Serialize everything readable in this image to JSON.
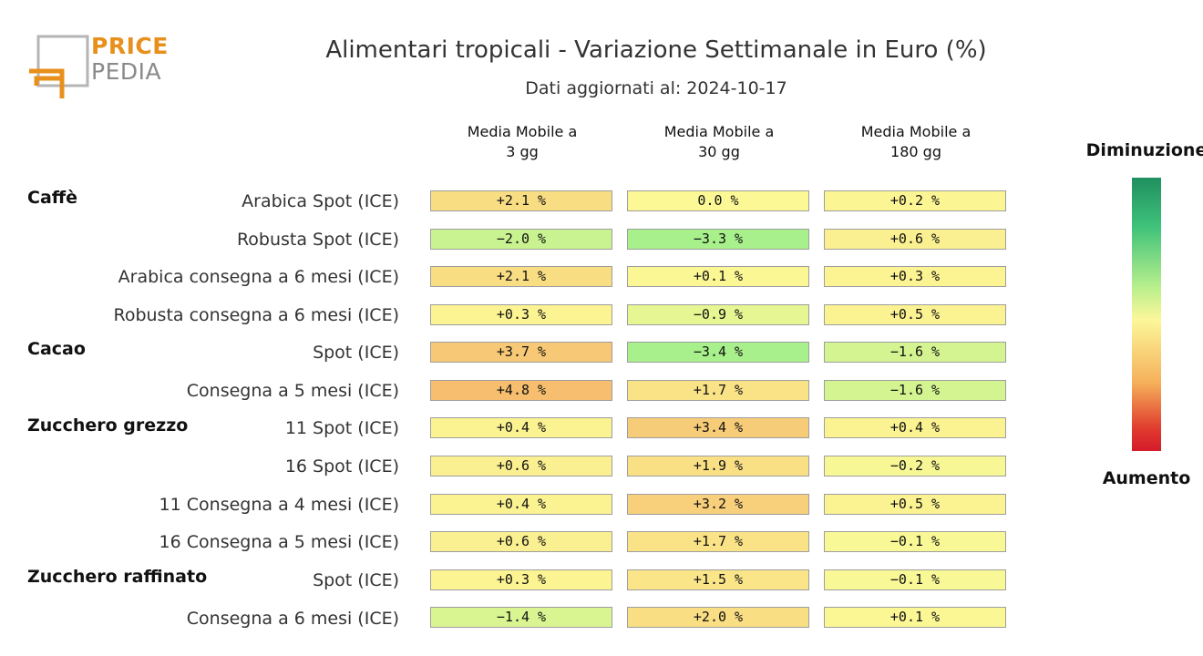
{
  "logo": {
    "line1": "PRICE",
    "line2": "PEDIA"
  },
  "chart_data": {
    "type": "table",
    "title": "Alimentari tropicali - Variazione Settimanale in Euro (%)",
    "subtitle": "Dati aggiornati al: 2024-10-17",
    "columns": [
      {
        "line1": "Media Mobile a",
        "line2": "3 gg"
      },
      {
        "line1": "Media Mobile a",
        "line2": "30 gg"
      },
      {
        "line1": "Media Mobile a",
        "line2": "180 gg"
      }
    ],
    "groups": [
      {
        "name": "Caffè",
        "rows": [
          {
            "label": "Arabica Spot (ICE)",
            "values": [
              2.1,
              0.0,
              0.2
            ]
          },
          {
            "label": "Robusta Spot (ICE)",
            "values": [
              -2.0,
              -3.3,
              0.6
            ]
          },
          {
            "label": "Arabica consegna a 6 mesi (ICE)",
            "values": [
              2.1,
              0.1,
              0.3
            ]
          },
          {
            "label": "Robusta consegna a 6 mesi (ICE)",
            "values": [
              0.3,
              -0.9,
              0.5
            ]
          }
        ]
      },
      {
        "name": "Cacao",
        "rows": [
          {
            "label": "Spot (ICE)",
            "values": [
              3.7,
              -3.4,
              -1.6
            ]
          },
          {
            "label": "Consegna a 5 mesi (ICE)",
            "values": [
              4.8,
              1.7,
              -1.6
            ]
          }
        ]
      },
      {
        "name": "Zucchero grezzo",
        "rows": [
          {
            "label": "11 Spot (ICE)",
            "values": [
              0.4,
              3.4,
              0.4
            ]
          },
          {
            "label": "16 Spot (ICE)",
            "values": [
              0.6,
              1.9,
              -0.2
            ]
          },
          {
            "label": "11 Consegna a 4 mesi (ICE)",
            "values": [
              0.4,
              3.2,
              0.5
            ]
          },
          {
            "label": "16 Consegna a 5 mesi (ICE)",
            "values": [
              0.6,
              1.7,
              -0.1
            ]
          }
        ]
      },
      {
        "name": "Zucchero raffinato",
        "rows": [
          {
            "label": "Spot (ICE)",
            "values": [
              0.3,
              1.5,
              -0.1
            ]
          },
          {
            "label": "Consegna a 6 mesi (ICE)",
            "values": [
              -1.4,
              2.0,
              0.1
            ]
          }
        ]
      }
    ],
    "cell_text": [
      [
        "+2.1 %",
        "0.0 %",
        "+0.2 %"
      ],
      [
        "−2.0 %",
        "−3.3 %",
        "+0.6 %"
      ],
      [
        "+2.1 %",
        "+0.1 %",
        "+0.3 %"
      ],
      [
        "+0.3 %",
        "−0.9 %",
        "+0.5 %"
      ],
      [
        "+3.7 %",
        "−3.4 %",
        "−1.6 %"
      ],
      [
        "+4.8 %",
        "+1.7 %",
        "−1.6 %"
      ],
      [
        "+0.4 %",
        "+3.4 %",
        "+0.4 %"
      ],
      [
        "+0.6 %",
        "+1.9 %",
        "−0.2 %"
      ],
      [
        "+0.4 %",
        "+3.2 %",
        "+0.5 %"
      ],
      [
        "+0.6 %",
        "+1.7 %",
        "−0.1 %"
      ],
      [
        "+0.3 %",
        "+1.5 %",
        "−0.1 %"
      ],
      [
        "−1.4 %",
        "+2.0 %",
        "+0.1 %"
      ]
    ],
    "legend": {
      "top": "Diminuzione",
      "bottom": "Aumento",
      "placement": "right"
    }
  }
}
